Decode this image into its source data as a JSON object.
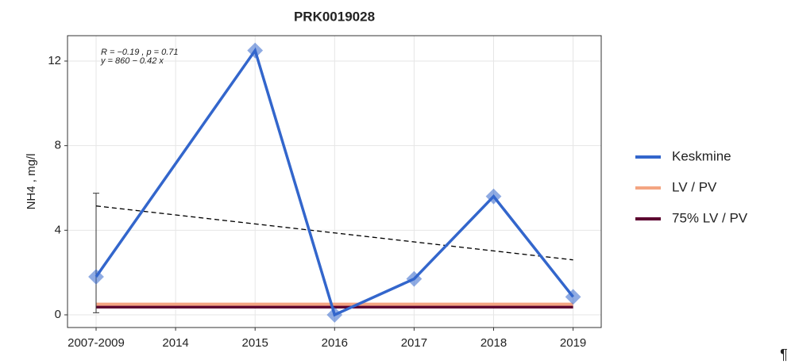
{
  "chart_data": {
    "type": "line",
    "title": "PRK0019028",
    "y_label": "NH4 , mg/l",
    "categories": [
      "2007-2009",
      "2014",
      "2015",
      "2016",
      "2017",
      "2018",
      "2019"
    ],
    "ylim": [
      -0.6,
      13.2
    ],
    "yticks": [
      0,
      4,
      8,
      12
    ],
    "grid": true,
    "legend": "right",
    "series": [
      {
        "name": "Keskmine",
        "color": "#3366cc",
        "x": [
          "2007-2009",
          "2015",
          "2016",
          "2017",
          "2018",
          "2019"
        ],
        "values": [
          1.8,
          12.5,
          0.0,
          1.7,
          5.6,
          0.85
        ]
      },
      {
        "name": "LV / PV",
        "color": "#f4a582",
        "value": 0.5
      },
      {
        "name": "75% LV / PV",
        "color": "#5c0030",
        "value": 0.375
      }
    ],
    "trend": {
      "start": 5.15,
      "end": 2.6,
      "annotation": [
        "R = −0.19 , p = 0.71",
        "y = 860 − 0.42 x"
      ]
    },
    "error_bar": {
      "category": "2007-2009",
      "low": 0.1,
      "high": 5.75
    },
    "pilcrow": "¶"
  }
}
